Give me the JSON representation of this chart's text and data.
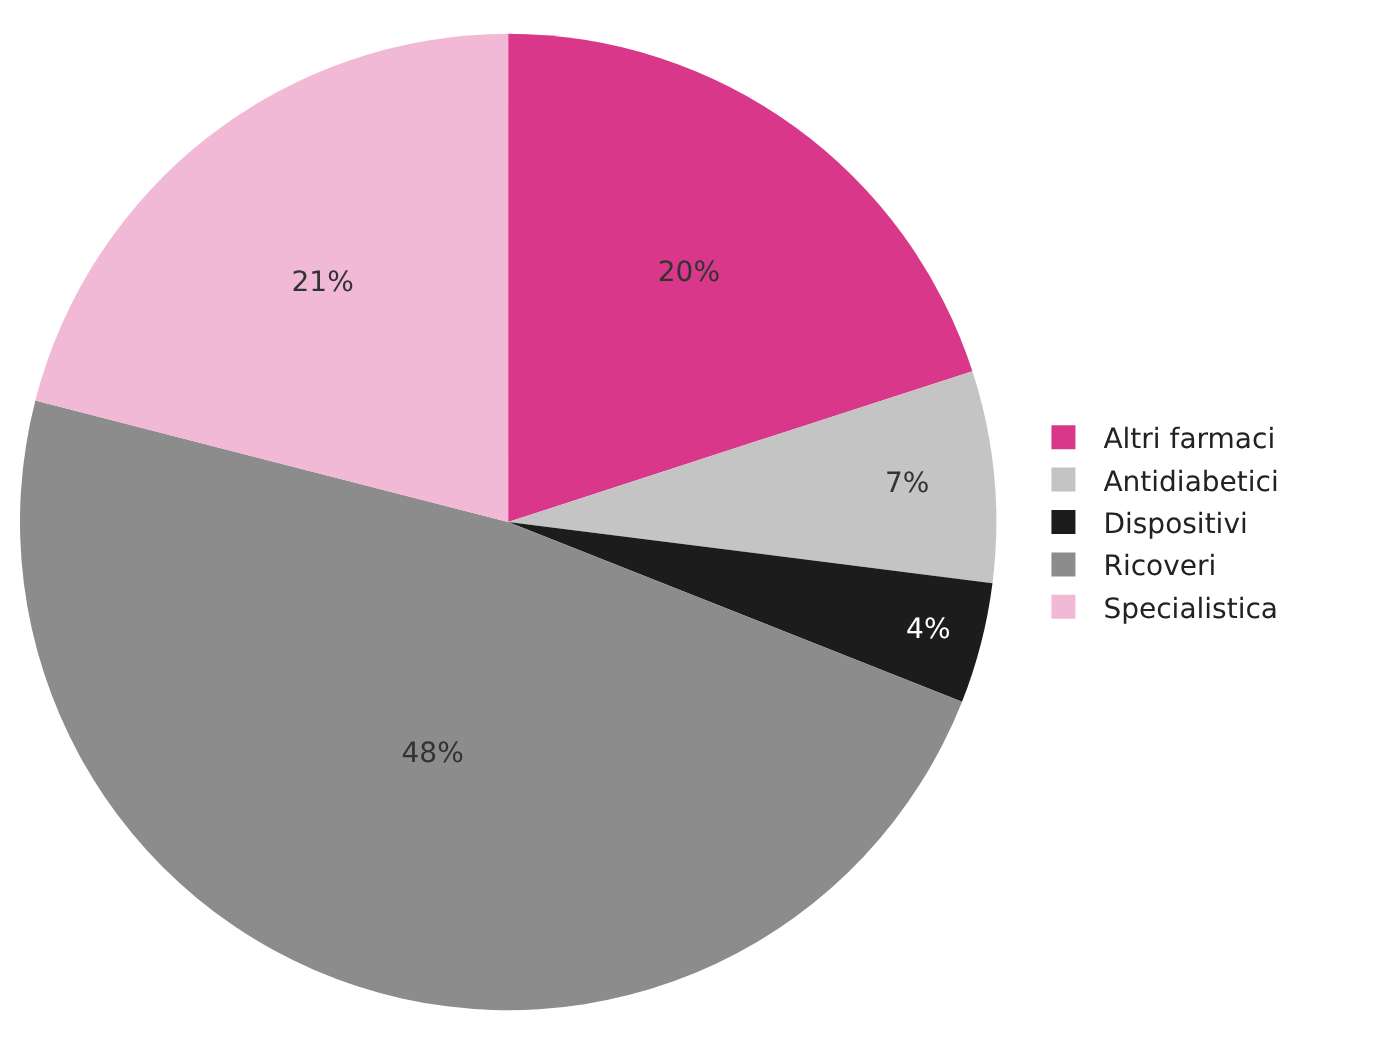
{
  "chart_data": {
    "type": "pie",
    "categories": [
      "Altri farmaci",
      "Antidiabetici",
      "Dispositivi",
      "Ricoveri",
      "Specialistica"
    ],
    "values": [
      20,
      7,
      4,
      48,
      21
    ],
    "colors": [
      "#d9388a",
      "#c4c4c4",
      "#1c1c1c",
      "#8c8c8c",
      "#f2b9d6"
    ],
    "value_labels": [
      "20%",
      "7%",
      "4%",
      "48%",
      "21%"
    ],
    "legend": "right"
  }
}
